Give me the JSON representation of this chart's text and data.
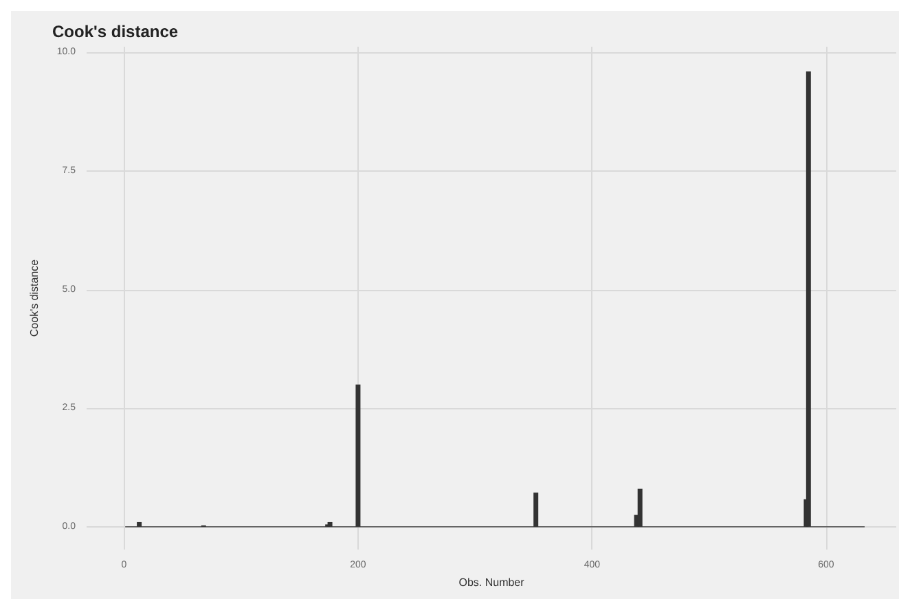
{
  "chart_data": {
    "type": "bar",
    "title": "Cook's distance",
    "xlabel": "Obs. Number",
    "ylabel": "Cook's distance",
    "series": [
      {
        "color": "#333333",
        "x": [
          13,
          68,
          174,
          176,
          200,
          352,
          438,
          441,
          583,
          585
        ],
        "values": [
          0.1,
          0.03,
          0.05,
          0.1,
          3.0,
          0.72,
          0.25,
          0.8,
          0.58,
          9.6
        ]
      },
      {
        "type": "line",
        "color": "#333333",
        "x": [
          1,
          633
        ],
        "values": [
          0,
          0
        ]
      }
    ],
    "xlim": [
      -32,
      660
    ],
    "xticks": [
      0,
      200,
      400,
      600
    ],
    "ylim": [
      -0.48,
      10.12
    ],
    "yticks": [
      {
        "value": 0,
        "label": "0.0"
      },
      {
        "value": 2.5,
        "label": "2.5"
      },
      {
        "value": 5,
        "label": "5.0"
      },
      {
        "value": 7.5,
        "label": "7.5"
      },
      {
        "value": 10,
        "label": "10.0"
      }
    ],
    "grid": true,
    "marker": "none"
  }
}
